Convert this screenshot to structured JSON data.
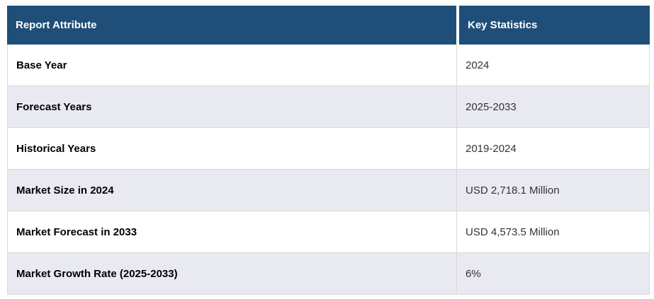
{
  "chart_data": {
    "type": "table",
    "columns": [
      "Report Attribute",
      "Key Statistics"
    ],
    "rows": [
      [
        "Base Year",
        "2024"
      ],
      [
        "Forecast Years",
        "2025-2033"
      ],
      [
        "Historical Years",
        "2019-2024"
      ],
      [
        "Market Size in 2024",
        "USD 2,718.1 Million"
      ],
      [
        "Market Forecast in 2033",
        "USD 4,573.5 Million"
      ],
      [
        "Market Growth Rate (2025-2033)",
        "6%"
      ]
    ]
  },
  "colors": {
    "header_bg": "#1F4E78",
    "header_text": "#FFFFFF",
    "stripe_bg": "#E9E9F2",
    "row_bg": "#FFFFFF",
    "border": "#D9D9D9",
    "attribute_text": "#000000",
    "value_text": "#333333"
  }
}
